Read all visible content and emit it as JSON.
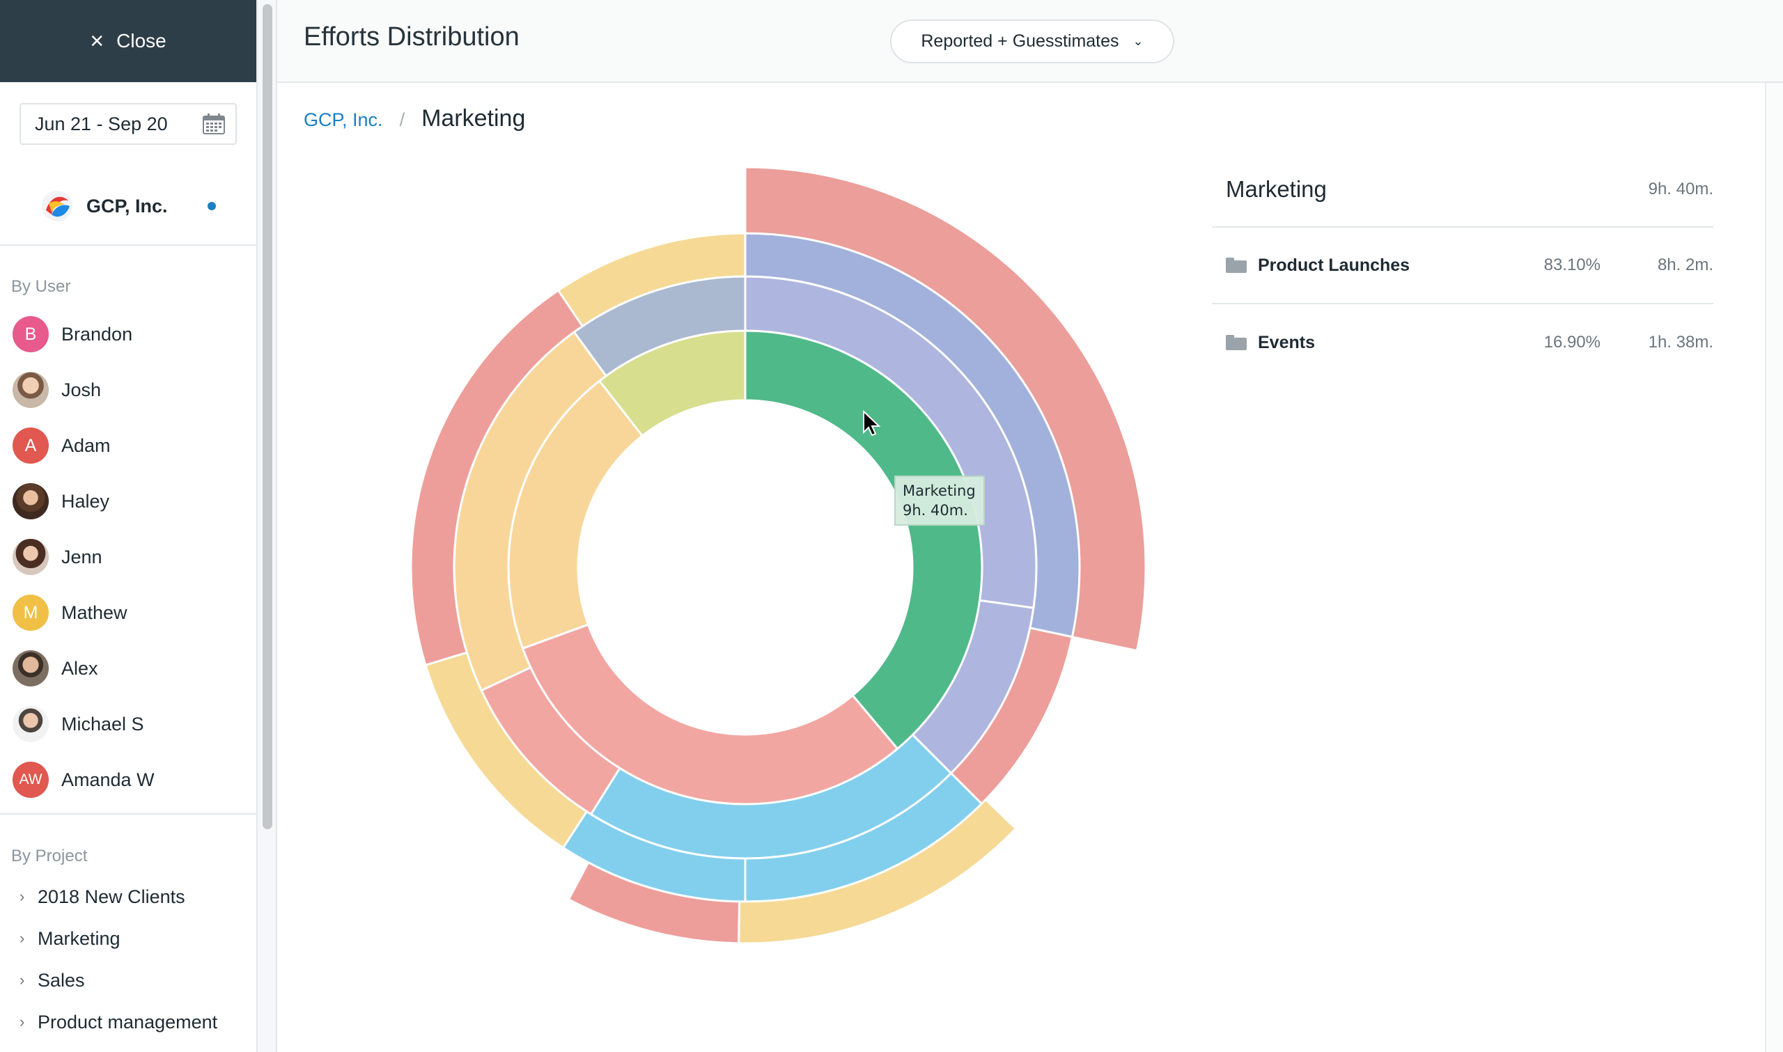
{
  "sidebar": {
    "close_label": "Close",
    "date_range": "Jun 21 - Sep 20",
    "company": "GCP, Inc.",
    "by_user_title": "By User",
    "users": [
      {
        "name": "Brandon",
        "initials": "B",
        "color": "#e95a8c"
      },
      {
        "name": "Josh",
        "initials": "",
        "color": ""
      },
      {
        "name": "Adam",
        "initials": "A",
        "color": "#e0584f"
      },
      {
        "name": "Haley",
        "initials": "",
        "color": ""
      },
      {
        "name": "Jenn",
        "initials": "",
        "color": ""
      },
      {
        "name": "Mathew",
        "initials": "M",
        "color": "#f0c046"
      },
      {
        "name": "Alex",
        "initials": "",
        "color": ""
      },
      {
        "name": "Michael S",
        "initials": "",
        "color": ""
      },
      {
        "name": "Amanda W",
        "initials": "AW",
        "color": "#e0584f"
      }
    ],
    "by_project_title": "By Project",
    "projects": [
      "2018 New Clients",
      "Marketing",
      "Sales",
      "Product management"
    ]
  },
  "header": {
    "title": "Efforts Distribution",
    "mode": "Reported + Guesstimates"
  },
  "breadcrumb": {
    "root": "GCP, Inc.",
    "separator": "/",
    "current": "Marketing"
  },
  "tooltip": {
    "name": "Marketing",
    "value": "9h. 40m."
  },
  "panel": {
    "title": "Marketing",
    "total": "9h. 40m.",
    "rows": [
      {
        "name": "Product Launches",
        "pct": "83.10%",
        "time": "8h. 2m."
      },
      {
        "name": "Events",
        "pct": "16.90%",
        "time": "1h. 38m."
      }
    ]
  },
  "chart_data": {
    "type": "sunburst",
    "unit": "degrees",
    "rings": [
      {
        "level": 1,
        "segments": [
          {
            "start": 0,
            "end": 140,
            "color": "#4fb98a"
          },
          {
            "start": 140,
            "end": 250,
            "color": "#f2a6a2"
          },
          {
            "start": 250,
            "end": 322,
            "color": "#f8d69a"
          },
          {
            "start": 322,
            "end": 360,
            "color": "#d7de8d"
          }
        ]
      },
      {
        "level": 2,
        "segments": [
          {
            "start": 0,
            "end": 98,
            "color": "#aeb6df"
          },
          {
            "start": 98,
            "end": 135,
            "color": "#aeb6df"
          },
          {
            "start": 135,
            "end": 212,
            "color": "#82cfed"
          },
          {
            "start": 212,
            "end": 245,
            "color": "#f2a6a2"
          },
          {
            "start": 245,
            "end": 324,
            "color": "#f8d69a"
          },
          {
            "start": 324,
            "end": 360,
            "color": "#aab8d0"
          }
        ]
      },
      {
        "level": 3,
        "segments": [
          {
            "start": 0,
            "end": 102,
            "color": "#a2b1db"
          },
          {
            "start": 102,
            "end": 135,
            "color": "#ed9e9a"
          },
          {
            "start": 135,
            "end": 180,
            "color": "#82cfed"
          },
          {
            "start": 180,
            "end": 213,
            "color": "#82cfed"
          },
          {
            "start": 213,
            "end": 253,
            "color": "#f5d995"
          },
          {
            "start": 253,
            "end": 326,
            "color": "#ed9e9a"
          },
          {
            "start": 326,
            "end": 360,
            "color": "#f5d995"
          }
        ]
      },
      {
        "level": 4,
        "segments": [
          {
            "start": 0,
            "end": 102,
            "color": "#ec9e9a",
            "extended": true
          },
          {
            "start": 134,
            "end": 181,
            "color": "#f5d995"
          },
          {
            "start": 181,
            "end": 208,
            "color": "#ed9e9a"
          }
        ]
      }
    ]
  }
}
